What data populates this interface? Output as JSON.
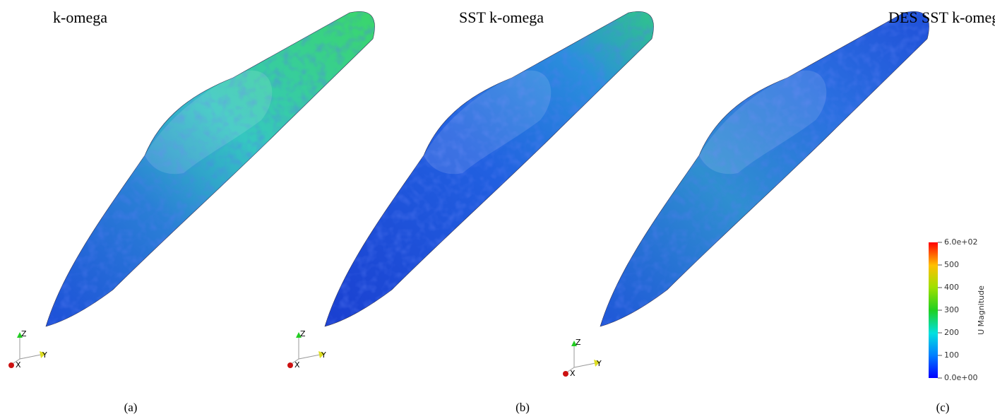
{
  "panels": [
    {
      "title": "k-omega",
      "caption": "(a)",
      "axes": {
        "z": "Z",
        "y": "Y",
        "x": "X"
      }
    },
    {
      "title": "SST k-omega",
      "caption": "(b)",
      "axes": {
        "z": "Z",
        "y": "Y",
        "x": "X"
      }
    },
    {
      "title": "DES SST k-omega",
      "caption": "(c)",
      "axes": {
        "z": "Z",
        "y": "Y",
        "x": "X"
      }
    }
  ],
  "colorbar": {
    "title": "U Magnitude",
    "range": [
      0,
      600
    ],
    "ticks": [
      {
        "value": 600,
        "label": "6.0e+02"
      },
      500,
      400,
      300,
      200,
      100,
      {
        "value": 0,
        "label": "0.0e+00"
      }
    ]
  }
}
